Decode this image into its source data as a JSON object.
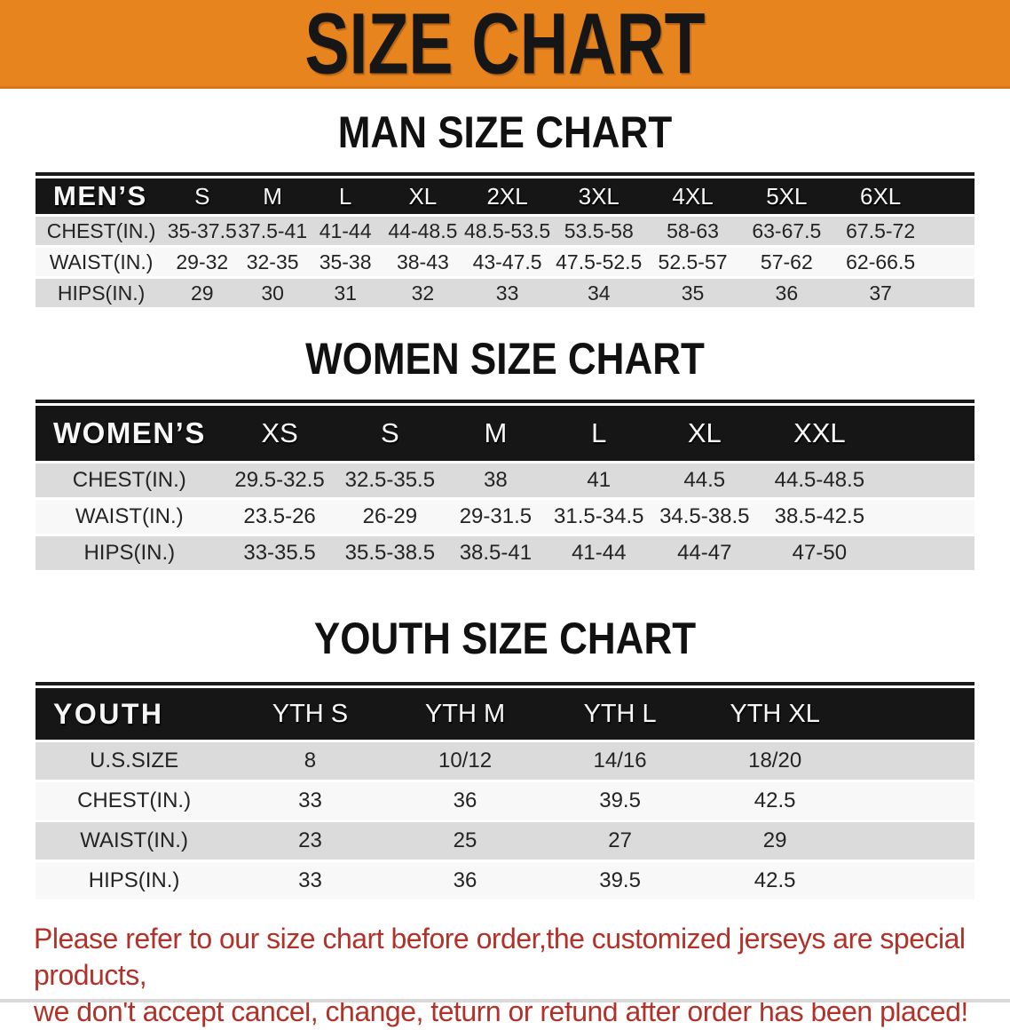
{
  "banner": {
    "title": "SIZE CHART",
    "bg_color": "#E8841E",
    "text_color": "#161616"
  },
  "sections": {
    "men": {
      "heading": "MAN SIZE CHART",
      "table_label": "MEN’S",
      "columns": [
        "S",
        "M",
        "L",
        "XL",
        "2XL",
        "3XL",
        "4XL",
        "5XL",
        "6XL"
      ],
      "rows": [
        {
          "label": "CHEST(IN.)",
          "values": [
            "35-37.5",
            "37.5-41",
            "41-44",
            "44-48.5",
            "48.5-53.5",
            "53.5-58",
            "58-63",
            "63-67.5",
            "67.5-72"
          ]
        },
        {
          "label": "WAIST(IN.)",
          "values": [
            "29-32",
            "32-35",
            "35-38",
            "38-43",
            "43-47.5",
            "47.5-52.5",
            "52.5-57",
            "57-62",
            "62-66.5"
          ]
        },
        {
          "label": "HIPS(IN.)",
          "values": [
            "29",
            "30",
            "31",
            "32",
            "33",
            "34",
            "35",
            "36",
            "37"
          ]
        }
      ]
    },
    "women": {
      "heading": "WOMEN SIZE CHART",
      "table_label": "WOMEN’S",
      "columns": [
        "XS",
        "S",
        "M",
        "L",
        "XL",
        "XXL"
      ],
      "rows": [
        {
          "label": "CHEST(IN.)",
          "values": [
            "29.5-32.5",
            "32.5-35.5",
            "38",
            "41",
            "44.5",
            "44.5-48.5"
          ]
        },
        {
          "label": "WAIST(IN.)",
          "values": [
            "23.5-26",
            "26-29",
            "29-31.5",
            "31.5-34.5",
            "34.5-38.5",
            "38.5-42.5"
          ]
        },
        {
          "label": "HIPS(IN.)",
          "values": [
            "33-35.5",
            "35.5-38.5",
            "38.5-41",
            "41-44",
            "44-47",
            "47-50"
          ]
        }
      ]
    },
    "youth": {
      "heading": "YOUTH SIZE CHART",
      "table_label": "YOUTH",
      "columns": [
        "YTH S",
        "YTH M",
        "YTH L",
        "YTH XL"
      ],
      "rows": [
        {
          "label": "U.S.SIZE",
          "values": [
            "8",
            "10/12",
            "14/16",
            "18/20"
          ]
        },
        {
          "label": "CHEST(IN.)",
          "values": [
            "33",
            "36",
            "39.5",
            "42.5"
          ]
        },
        {
          "label": "WAIST(IN.)",
          "values": [
            "23",
            "25",
            "27",
            "29"
          ]
        },
        {
          "label": "HIPS(IN.)",
          "values": [
            "33",
            "36",
            "39.5",
            "42.5"
          ]
        }
      ]
    }
  },
  "disclaimer": {
    "line1": "Please refer to our size chart before order,the customized jerseys are special products,",
    "line2": "we don't accept cancel, change, teturn or refund after order has been placed!",
    "color": "#B23229"
  }
}
